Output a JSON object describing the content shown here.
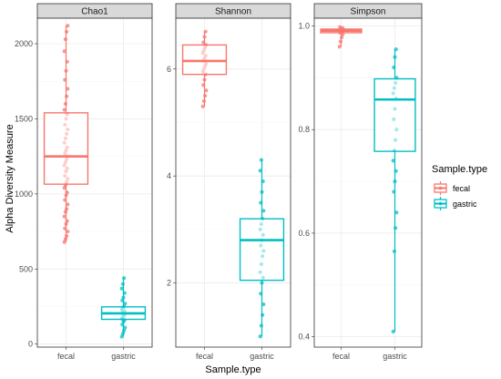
{
  "chart_data": {
    "type": "box",
    "xlabel": "Sample.type",
    "ylabel": "Alpha Diversity Measure",
    "categories": [
      "fecal",
      "gastric"
    ],
    "colors": {
      "fecal": "#F8766D",
      "gastric": "#00BFC4"
    },
    "legend": {
      "title": "Sample.type",
      "entries": [
        "fecal",
        "gastric"
      ],
      "position": "right"
    },
    "grid": true,
    "panels": [
      {
        "title": "Chao1",
        "ylim": [
          -20,
          2170
        ],
        "yticks": [
          0,
          500,
          1000,
          1500,
          2000
        ],
        "boxes": [
          {
            "group": "fecal",
            "min": 680,
            "q1": 1065,
            "median": 1250,
            "q3": 1540,
            "max": 2120,
            "points": [
              680,
              700,
              720,
              750,
              770,
              800,
              820,
              850,
              880,
              900,
              930,
              960,
              990,
              1010,
              1040,
              1060,
              1080,
              1100,
              1120,
              1150,
              1170,
              1190,
              1210,
              1230,
              1250,
              1270,
              1290,
              1310,
              1340,
              1370,
              1400,
              1430,
              1460,
              1500,
              1530,
              1560,
              1600,
              1650,
              1700,
              1760,
              1820,
              1880,
              1950,
              2030,
              2080,
              2120
            ]
          },
          {
            "group": "gastric",
            "min": 50,
            "q1": 165,
            "median": 205,
            "q3": 248,
            "max": 440,
            "points": [
              50,
              70,
              90,
              110,
              130,
              150,
              160,
              170,
              180,
              190,
              200,
              205,
              210,
              220,
              230,
              240,
              250,
              270,
              290,
              310,
              340,
              370,
              400,
              440
            ]
          }
        ]
      },
      {
        "title": "Shannon",
        "ylim": [
          0.8,
          6.95
        ],
        "yticks": [
          2,
          4,
          6
        ],
        "boxes": [
          {
            "group": "fecal",
            "min": 5.3,
            "q1": 5.9,
            "median": 6.15,
            "q3": 6.45,
            "max": 6.7,
            "points": [
              5.3,
              5.4,
              5.5,
              5.6,
              5.7,
              5.8,
              5.9,
              5.95,
              6.0,
              6.05,
              6.1,
              6.15,
              6.2,
              6.25,
              6.3,
              6.35,
              6.4,
              6.45,
              6.5,
              6.6,
              6.7
            ]
          },
          {
            "group": "gastric",
            "min": 1.0,
            "q1": 2.05,
            "median": 2.8,
            "q3": 3.2,
            "max": 4.3,
            "points": [
              1.0,
              1.2,
              1.4,
              1.6,
              1.8,
              2.0,
              2.1,
              2.2,
              2.35,
              2.5,
              2.6,
              2.7,
              2.8,
              2.9,
              3.0,
              3.1,
              3.2,
              3.35,
              3.5,
              3.7,
              3.9,
              4.1,
              4.3
            ]
          }
        ]
      },
      {
        "title": "Simpson",
        "ylim": [
          0.38,
          1.015
        ],
        "yticks": [
          0.4,
          0.6,
          0.8,
          1.0
        ],
        "ytick_labels": [
          "0.4",
          "0.6",
          "0.8",
          "1.0"
        ],
        "boxes": [
          {
            "group": "fecal",
            "min": 0.96,
            "q1": 0.987,
            "median": 0.991,
            "q3": 0.994,
            "max": 0.998,
            "points": [
              0.96,
              0.97,
              0.978,
              0.984,
              0.987,
              0.989,
              0.991,
              0.992,
              0.993,
              0.994,
              0.996,
              0.998
            ]
          },
          {
            "group": "gastric",
            "min": 0.41,
            "q1": 0.758,
            "median": 0.858,
            "q3": 0.898,
            "max": 0.955,
            "points": [
              0.41,
              0.565,
              0.61,
              0.64,
              0.68,
              0.7,
              0.72,
              0.74,
              0.76,
              0.78,
              0.8,
              0.82,
              0.84,
              0.86,
              0.87,
              0.88,
              0.89,
              0.9,
              0.92,
              0.94,
              0.955
            ]
          }
        ]
      }
    ]
  }
}
